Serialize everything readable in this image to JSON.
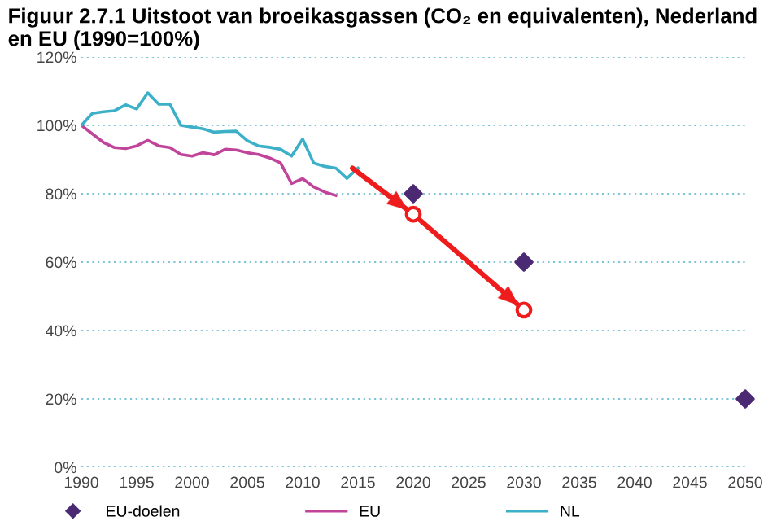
{
  "chart_data": {
    "type": "line",
    "title": "Figuur 2.7.1 Uitstoot van broeikasgassen (CO₂ en equivalenten), Nederland en EU (1990=100%)",
    "series": [
      {
        "name": "EU-doelen",
        "type": "scatter",
        "marker": "diamond",
        "color": "#4b2a73",
        "x": [
          2020,
          2030,
          2050
        ],
        "values": [
          80,
          60,
          20
        ]
      },
      {
        "name": "EU",
        "color": "#c0449a",
        "x": [
          1990,
          1991,
          1992,
          1993,
          1994,
          1995,
          1996,
          1997,
          1998,
          1999,
          2000,
          2001,
          2002,
          2003,
          2004,
          2005,
          2006,
          2007,
          2008,
          2009,
          2010,
          2011,
          2012,
          2013
        ],
        "values": [
          100,
          97.5,
          95,
          93.5,
          93.2,
          94,
          95.6,
          94,
          93.5,
          91.5,
          91,
          92,
          91.4,
          93,
          92.8,
          92,
          91.5,
          90.5,
          89,
          83,
          84.4,
          82,
          80.5,
          79.5
        ]
      },
      {
        "name": "NL",
        "color": "#3bb0c8",
        "x": [
          1990,
          1991,
          1992,
          1993,
          1994,
          1995,
          1996,
          1997,
          1998,
          1999,
          2000,
          2001,
          2002,
          2003,
          2004,
          2005,
          2006,
          2007,
          2008,
          2009,
          2010,
          2011,
          2012,
          2013,
          2014,
          2015
        ],
        "values": [
          100,
          103.5,
          104,
          104.3,
          106,
          104.8,
          109.5,
          106.2,
          106.2,
          100,
          99.5,
          99,
          98,
          98.2,
          98.3,
          95.5,
          94,
          93.6,
          93,
          91,
          96,
          89,
          88,
          87.5,
          84.5,
          87.5
        ]
      },
      {
        "type": "line",
        "color": "#ee1c1c",
        "marker": "circle",
        "x": [
          2014.5,
          2020,
          2030
        ],
        "values": [
          87.5,
          74,
          46
        ]
      }
    ],
    "xlim": [
      1990,
      2050
    ],
    "xticks": [
      1990,
      1995,
      2000,
      2005,
      2010,
      2015,
      2020,
      2025,
      2030,
      2035,
      2040,
      2045,
      2050
    ],
    "ylim": [
      0,
      120
    ],
    "yticks": [
      {
        "value": 0,
        "label": "0%"
      },
      {
        "value": 20,
        "label": "20%"
      },
      {
        "value": 40,
        "label": "40%"
      },
      {
        "value": 60,
        "label": "60%"
      },
      {
        "value": 80,
        "label": "80%"
      },
      {
        "value": 100,
        "label": "100%"
      },
      {
        "value": 120,
        "label": "120%"
      }
    ],
    "grid": "y",
    "legend": "bottom"
  }
}
